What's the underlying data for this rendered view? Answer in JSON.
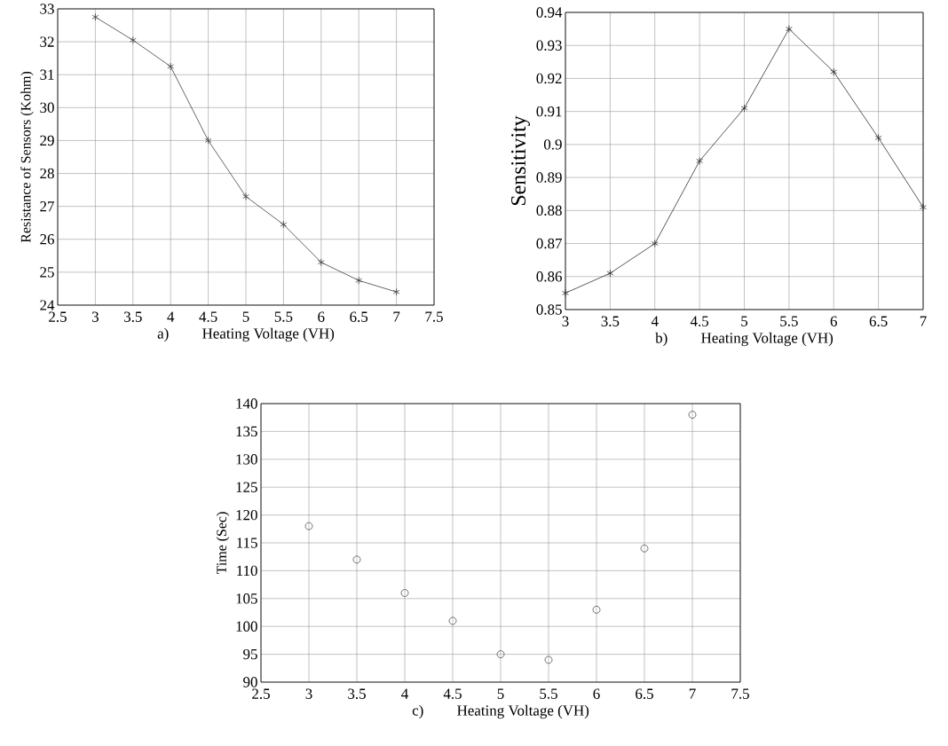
{
  "chart_data": [
    {
      "type": "line",
      "xlabel": "Heating Voltage (VH)",
      "ylabel": "Resistance of Sensors (Kohm)",
      "annotations": [
        "a)"
      ],
      "x": [
        3,
        3.5,
        4,
        4.5,
        5,
        5.5,
        6,
        6.5,
        7
      ],
      "series": [
        {
          "color": "#404040",
          "values": [
            32.75,
            32.05,
            31.25,
            29.0,
            27.3,
            26.45,
            25.3,
            24.75,
            24.4
          ]
        }
      ],
      "xlim": [
        2.5,
        7.5
      ],
      "xticks": [
        2.5,
        3,
        3.5,
        4,
        4.5,
        5,
        5.5,
        6,
        6.5,
        7,
        7.5
      ],
      "ylim": [
        24,
        33
      ],
      "yticks": [
        24,
        25,
        26,
        27,
        28,
        29,
        30,
        31,
        32,
        33
      ],
      "grid": true,
      "marker": "cross",
      "line_style": "solid"
    },
    {
      "type": "line",
      "xlabel": "Heating Voltage (VH)",
      "ylabel": "Sensitivity",
      "annotations": [
        "b)"
      ],
      "x": [
        3,
        3.5,
        4,
        4.5,
        5,
        5.5,
        6,
        6.5,
        7
      ],
      "series": [
        {
          "color": "#303030",
          "values": [
            0.855,
            0.861,
            0.87,
            0.895,
            0.911,
            0.935,
            0.922,
            0.902,
            0.881
          ]
        }
      ],
      "xlim": [
        3,
        7
      ],
      "xticks": [
        3,
        3.5,
        4,
        4.5,
        5,
        5.5,
        6,
        6.5,
        7
      ],
      "ylim": [
        0.85,
        0.94
      ],
      "yticks": [
        0.85,
        0.86,
        0.87,
        0.88,
        0.89,
        0.9,
        0.91,
        0.92,
        0.93,
        0.94
      ],
      "grid": true,
      "marker": "cross",
      "line_style": "solid"
    },
    {
      "type": "scatter",
      "xlabel": "Heating Voltage (VH)",
      "ylabel": "Time (Sec)",
      "annotations": [
        "c)"
      ],
      "x": [
        3,
        3.5,
        4,
        4.5,
        5,
        5.5,
        6,
        6.5,
        7
      ],
      "series": [
        {
          "color": "#505050",
          "values": [
            118,
            112,
            106,
            101,
            95,
            94,
            103,
            114,
            138
          ]
        }
      ],
      "xlim": [
        2.5,
        7.5
      ],
      "xticks": [
        2.5,
        3,
        3.5,
        4,
        4.5,
        5,
        5.5,
        6,
        6.5,
        7,
        7.5
      ],
      "ylim": [
        90,
        140
      ],
      "yticks": [
        90,
        95,
        100,
        105,
        110,
        115,
        120,
        125,
        130,
        135,
        140
      ],
      "grid": true,
      "marker": "circle"
    }
  ]
}
